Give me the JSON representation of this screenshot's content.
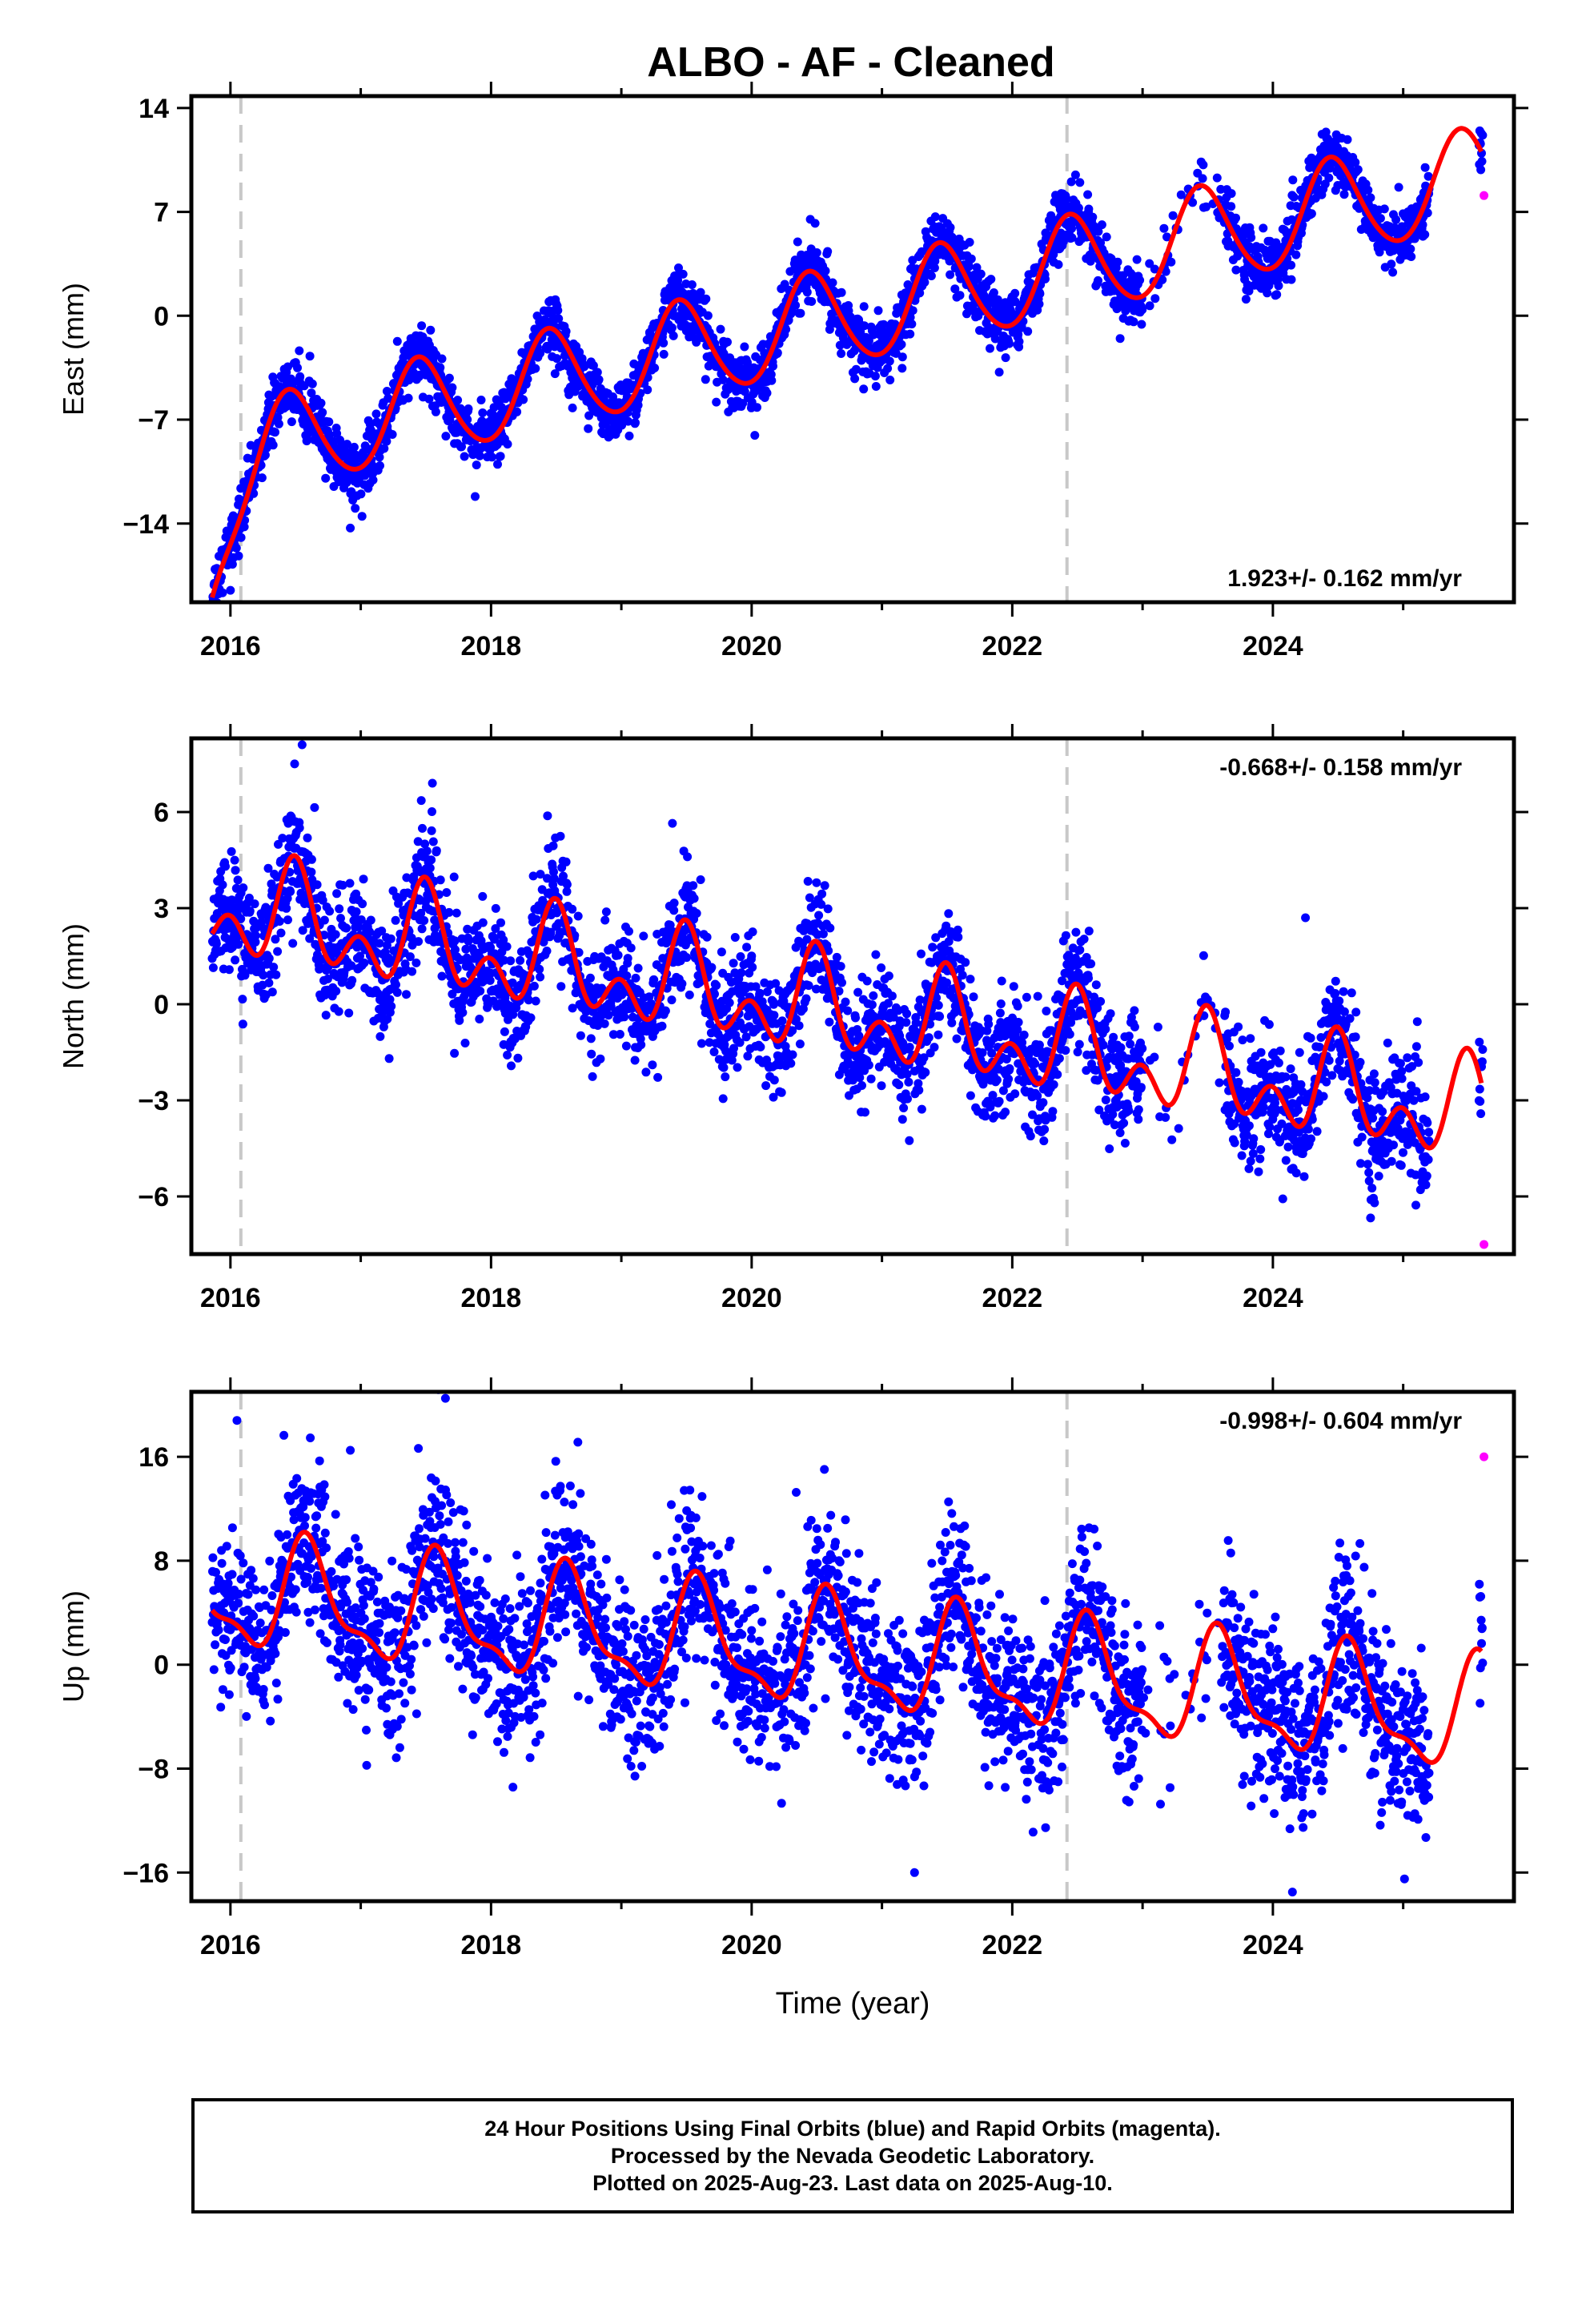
{
  "title": "ALBO  - AF - Cleaned",
  "colors": {
    "final": "#0000ff",
    "rapid": "#ff00ff",
    "model": "#ff0000",
    "discontinuity": "#c8c8c8"
  },
  "caption": [
    "24 Hour Positions Using Final Orbits (blue) and Rapid Orbits (magenta).",
    "Processed by the Nevada Geodetic Laboratory.",
    "Plotted on 2025-Aug-23. Last data on 2025-Aug-10."
  ],
  "chart_data": [
    {
      "type": "scatter",
      "ylabel": "East (mm)",
      "xlabel": "",
      "xlim": [
        2015.7,
        2025.85
      ],
      "ylim": [
        -19.3,
        14.8
      ],
      "xticks": [
        "2016",
        "2018",
        "2020",
        "2022",
        "2024"
      ],
      "yticks": [
        "14",
        "7",
        "0",
        "−7",
        "−14"
      ],
      "rate_label": "1.923+/- 0.162 mm/yr",
      "rate_pos": "bottom-right",
      "discontinuities": [
        2016.08,
        2022.42
      ],
      "model": {
        "trend_mm_per_yr": 1.923,
        "offset_at_2020": -1.4,
        "annual_amp": 3.3,
        "annual_peak": 0.45,
        "semiannual_amp": 0.3,
        "semiannual_peak": 0.4,
        "noise": 1.0
      },
      "start_ramp": {
        "depth": -7.5,
        "tau_yr": 0.18
      },
      "outliers": [
        [
          2016.0,
          -18.5
        ],
        [
          2016.92,
          -14.3
        ],
        [
          2021.9,
          -3.8
        ],
        [
          2020.45,
          6.5
        ]
      ],
      "rapid_points": [
        [
          2025.62,
          8.1
        ]
      ]
    },
    {
      "type": "scatter",
      "ylabel": "North (mm)",
      "xlabel": "",
      "xlim": [
        2015.7,
        2025.85
      ],
      "ylim": [
        -7.8,
        8.3
      ],
      "xticks": [
        "2016",
        "2018",
        "2020",
        "2022",
        "2024"
      ],
      "yticks": [
        "6",
        "3",
        "0",
        "−3",
        "−6"
      ],
      "rate_label": "-0.668+/- 0.158 mm/yr",
      "rate_pos": "top-right",
      "discontinuities": [
        2016.08,
        2022.42
      ],
      "model": {
        "trend_mm_per_yr": -0.668,
        "offset_at_2020": 0.2,
        "annual_amp": 1.1,
        "annual_peak": 0.5,
        "semiannual_amp": 1.0,
        "semiannual_peak": 0.49,
        "noise": 0.9
      },
      "outliers": [
        [
          2016.55,
          8.1
        ],
        [
          2017.55,
          6.9
        ],
        [
          2024.25,
          2.7
        ],
        [
          2024.78,
          -6.2
        ]
      ],
      "rapid_points": [
        [
          2025.62,
          -7.5
        ]
      ]
    },
    {
      "type": "scatter",
      "ylabel": "Up (mm)",
      "xlabel": "Time (year)",
      "xlim": [
        2015.7,
        2025.85
      ],
      "ylim": [
        -18.2,
        21.0
      ],
      "xticks": [
        "2016",
        "2018",
        "2020",
        "2022",
        "2024"
      ],
      "yticks": [
        "16",
        "8",
        "0",
        "−8",
        "−16"
      ],
      "rate_label": "-0.998+/- 0.604 mm/yr",
      "rate_pos": "top-right",
      "discontinuities": [
        2016.08,
        2022.42
      ],
      "model": {
        "trend_mm_per_yr": -0.998,
        "offset_at_2020": 1.4,
        "annual_amp": 4.0,
        "annual_peak": 0.6,
        "semiannual_amp": 1.5,
        "semiannual_peak": 0.55,
        "noise": 3.2
      },
      "outliers": [
        [
          2016.05,
          18.8
        ],
        [
          2017.65,
          20.5
        ],
        [
          2016.92,
          16.5
        ],
        [
          2021.25,
          -16.0
        ],
        [
          2024.15,
          -17.5
        ]
      ],
      "rapid_points": [
        [
          2025.62,
          16.0
        ]
      ]
    }
  ]
}
